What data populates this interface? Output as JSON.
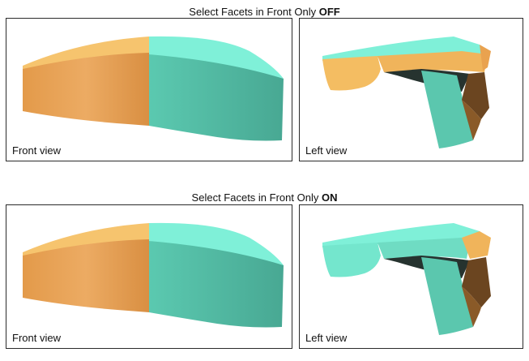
{
  "sections": [
    {
      "title_prefix": "Select Facets in Front Only",
      "title_state": "OFF",
      "panels": [
        {
          "caption": "Front view"
        },
        {
          "caption": "Left view"
        }
      ]
    },
    {
      "title_prefix": "Select Facets in Front Only",
      "title_state": "ON",
      "panels": [
        {
          "caption": "Front view"
        },
        {
          "caption": "Left view"
        }
      ]
    }
  ],
  "colors": {
    "orange": "#e8a355",
    "orange_dark": "#8a5a28",
    "teal": "#5cc7ae",
    "teal_light": "#7ff0d8",
    "shadow": "#2c3a35",
    "border": "#2b2b2b"
  }
}
